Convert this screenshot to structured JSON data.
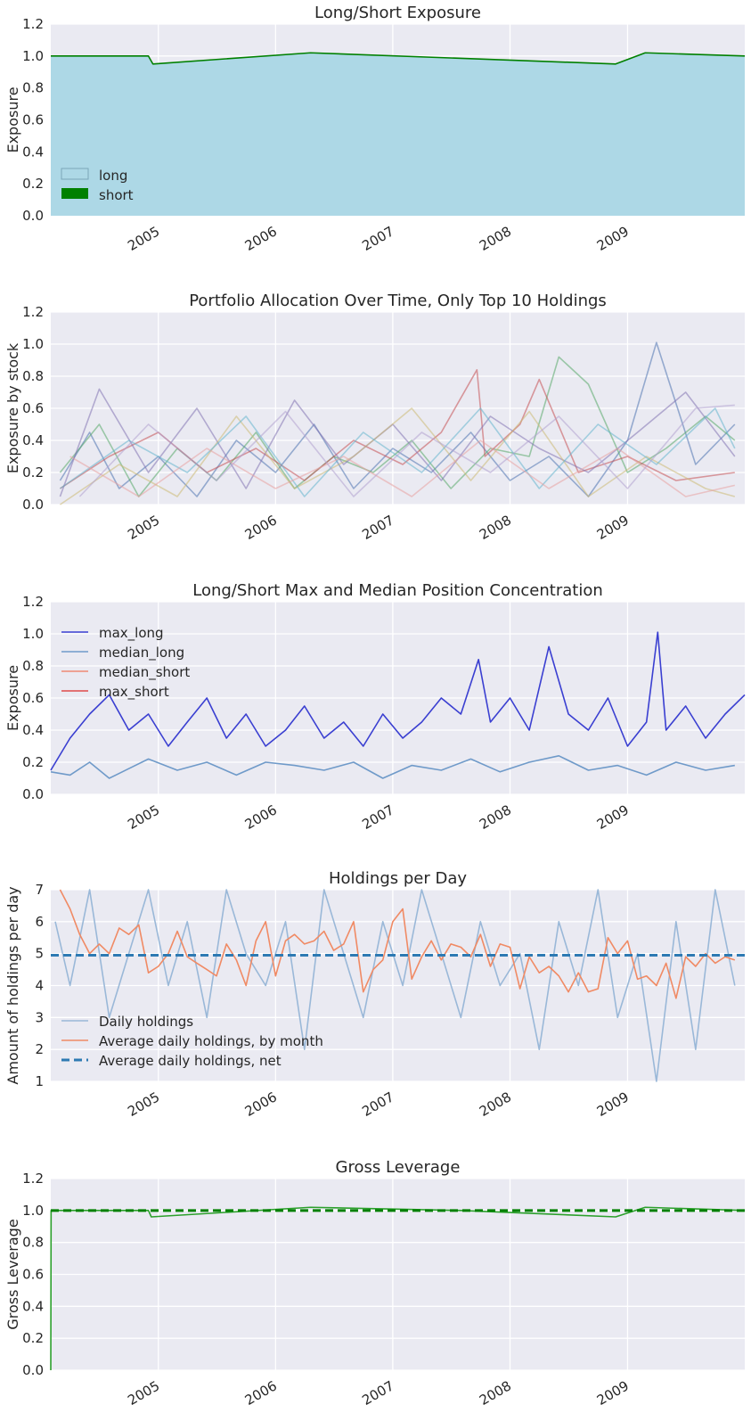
{
  "chart_data": [
    {
      "type": "area",
      "title": "Long/Short Exposure",
      "ylabel": "Exposure",
      "xlabel": "",
      "xlim": [
        "2004-02-01",
        "2010-01-01"
      ],
      "ylim": [
        0,
        1.2
      ],
      "yticks": [
        "0.0",
        "0.2",
        "0.4",
        "0.6",
        "0.8",
        "1.0",
        "1.2"
      ],
      "xticks": [
        "2005",
        "2006",
        "2007",
        "2008",
        "2009"
      ],
      "grid": true,
      "legend_position": "lower-left",
      "series": [
        {
          "name": "long",
          "color": "#add8e6",
          "fill": true,
          "x": [
            "2004-02-01",
            "2004-12-01",
            "2004-12-15",
            "2006-04-20",
            "2008-11-25",
            "2009-02-25",
            "2010-01-01"
          ],
          "y": [
            1.0,
            1.0,
            0.95,
            1.02,
            0.95,
            1.02,
            1.0
          ]
        },
        {
          "name": "short",
          "color": "#008000",
          "fill": false,
          "x": [
            "2004-02-01",
            "2004-12-01",
            "2004-12-15",
            "2006-04-20",
            "2008-11-25",
            "2009-02-25",
            "2010-01-01"
          ],
          "y": [
            1.0,
            1.0,
            0.95,
            1.02,
            0.95,
            1.02,
            1.0
          ]
        }
      ]
    },
    {
      "type": "line",
      "title": "Portfolio Allocation Over Time, Only Top 10 Holdings",
      "ylabel": "Exposure by stock",
      "xlabel": "",
      "xlim": [
        "2004-02-01",
        "2010-01-01"
      ],
      "ylim": [
        0,
        1.2
      ],
      "yticks": [
        "0.0",
        "0.2",
        "0.4",
        "0.6",
        "0.8",
        "1.0",
        "1.2"
      ],
      "xticks": [
        "2005",
        "2006",
        "2007",
        "2008",
        "2009"
      ],
      "grid": true,
      "series": [
        {
          "color": "#4c72b0",
          "x": [
            "2004-03-01",
            "2004-06-01",
            "2004-09-01",
            "2005-01-01",
            "2005-05-01",
            "2005-09-01",
            "2006-01-01",
            "2006-05-01",
            "2006-09-01",
            "2007-01-01",
            "2007-05-01",
            "2007-09-01",
            "2008-01-01",
            "2008-05-01",
            "2008-09-01",
            "2009-01-01",
            "2009-04-01",
            "2009-08-01",
            "2009-12-01"
          ],
          "y": [
            0.15,
            0.45,
            0.1,
            0.3,
            0.05,
            0.4,
            0.2,
            0.5,
            0.1,
            0.35,
            0.2,
            0.45,
            0.15,
            0.3,
            0.05,
            0.4,
            1.01,
            0.25,
            0.5
          ]
        },
        {
          "color": "#55a868",
          "x": [
            "2004-03-01",
            "2004-07-01",
            "2004-11-01",
            "2005-03-01",
            "2005-07-01",
            "2005-11-01",
            "2006-03-01",
            "2006-07-01",
            "2006-11-01",
            "2007-03-01",
            "2007-07-01",
            "2007-11-01",
            "2008-03-01",
            "2008-06-01",
            "2008-09-01",
            "2009-01-01",
            "2009-05-01",
            "2009-09-01",
            "2009-12-01"
          ],
          "y": [
            0.2,
            0.5,
            0.05,
            0.35,
            0.15,
            0.45,
            0.1,
            0.3,
            0.2,
            0.4,
            0.1,
            0.35,
            0.3,
            0.92,
            0.75,
            0.2,
            0.35,
            0.55,
            0.4
          ]
        },
        {
          "color": "#c44e52",
          "x": [
            "2004-03-01",
            "2004-08-01",
            "2005-01-01",
            "2005-06-01",
            "2005-11-01",
            "2006-04-01",
            "2006-09-01",
            "2007-02-01",
            "2007-06-01",
            "2007-09-20",
            "2007-10-15",
            "2008-02-01",
            "2008-04-01",
            "2008-08-01",
            "2009-01-01",
            "2009-06-01",
            "2009-12-01"
          ],
          "y": [
            0.1,
            0.3,
            0.45,
            0.2,
            0.35,
            0.15,
            0.4,
            0.25,
            0.45,
            0.84,
            0.3,
            0.5,
            0.78,
            0.2,
            0.3,
            0.15,
            0.2
          ]
        },
        {
          "color": "#8172b2",
          "x": [
            "2004-03-01",
            "2004-07-01",
            "2004-12-01",
            "2005-05-01",
            "2005-10-01",
            "2006-03-01",
            "2006-08-01",
            "2007-01-01",
            "2007-06-01",
            "2007-11-01",
            "2008-04-01",
            "2008-09-01",
            "2009-02-01",
            "2009-07-01",
            "2009-12-01"
          ],
          "y": [
            0.05,
            0.72,
            0.2,
            0.6,
            0.1,
            0.65,
            0.25,
            0.5,
            0.15,
            0.55,
            0.35,
            0.2,
            0.45,
            0.7,
            0.3
          ]
        },
        {
          "color": "#ccb974",
          "x": [
            "2004-03-01",
            "2004-09-01",
            "2005-03-01",
            "2005-09-01",
            "2006-03-01",
            "2006-09-01",
            "2007-03-01",
            "2007-09-01",
            "2008-03-01",
            "2008-09-01",
            "2009-03-01",
            "2009-09-01",
            "2009-12-01"
          ],
          "y": [
            0.0,
            0.25,
            0.05,
            0.55,
            0.1,
            0.3,
            0.6,
            0.15,
            0.58,
            0.05,
            0.3,
            0.1,
            0.05
          ]
        },
        {
          "color": "#64b5cd",
          "x": [
            "2004-03-01",
            "2004-10-01",
            "2005-04-01",
            "2005-10-01",
            "2006-04-01",
            "2006-10-01",
            "2007-04-01",
            "2007-10-01",
            "2008-04-01",
            "2008-10-01",
            "2009-04-01",
            "2009-10-01",
            "2009-12-01"
          ],
          "y": [
            0.1,
            0.4,
            0.2,
            0.55,
            0.05,
            0.45,
            0.2,
            0.6,
            0.1,
            0.5,
            0.25,
            0.6,
            0.35
          ]
        },
        {
          "color": "#e8a0a0",
          "x": [
            "2004-04-01",
            "2004-11-01",
            "2005-06-01",
            "2006-01-01",
            "2006-08-01",
            "2007-03-01",
            "2007-10-01",
            "2008-05-01",
            "2008-12-01",
            "2009-07-01",
            "2009-12-01"
          ],
          "y": [
            0.3,
            0.05,
            0.35,
            0.1,
            0.3,
            0.05,
            0.4,
            0.1,
            0.35,
            0.05,
            0.12
          ]
        },
        {
          "color": "#b0a0d0",
          "x": [
            "2004-05-01",
            "2004-12-01",
            "2005-07-01",
            "2006-02-01",
            "2006-09-01",
            "2007-04-01",
            "2007-11-01",
            "2008-06-01",
            "2009-01-01",
            "2009-08-01",
            "2009-12-01"
          ],
          "y": [
            0.05,
            0.5,
            0.15,
            0.58,
            0.05,
            0.45,
            0.2,
            0.55,
            0.1,
            0.6,
            0.62
          ]
        }
      ]
    },
    {
      "type": "line",
      "title": "Long/Short Max and Median Position Concentration",
      "ylabel": "Exposure",
      "xlabel": "",
      "xlim": [
        "2004-02-01",
        "2010-01-01"
      ],
      "ylim": [
        0,
        1.2
      ],
      "yticks": [
        "0.0",
        "0.2",
        "0.4",
        "0.6",
        "0.8",
        "1.0",
        "1.2"
      ],
      "xticks": [
        "2005",
        "2006",
        "2007",
        "2008",
        "2009"
      ],
      "grid": true,
      "legend_position": "center-left",
      "series": [
        {
          "name": "max_long",
          "color": "#3a3fd1",
          "x": [
            "2004-02-01",
            "2004-04-01",
            "2004-06-01",
            "2004-08-01",
            "2004-10-01",
            "2004-12-01",
            "2005-02-01",
            "2005-04-01",
            "2005-06-01",
            "2005-08-01",
            "2005-10-01",
            "2005-12-01",
            "2006-02-01",
            "2006-04-01",
            "2006-06-01",
            "2006-08-01",
            "2006-10-01",
            "2006-12-01",
            "2007-02-01",
            "2007-04-01",
            "2007-06-01",
            "2007-08-01",
            "2007-09-25",
            "2007-11-01",
            "2008-01-01",
            "2008-03-01",
            "2008-05-01",
            "2008-07-01",
            "2008-09-01",
            "2008-11-01",
            "2009-01-01",
            "2009-03-01",
            "2009-04-05",
            "2009-05-01",
            "2009-07-01",
            "2009-09-01",
            "2009-11-01",
            "2010-01-01"
          ],
          "y": [
            0.15,
            0.35,
            0.5,
            0.62,
            0.4,
            0.5,
            0.3,
            0.45,
            0.6,
            0.35,
            0.5,
            0.3,
            0.4,
            0.55,
            0.35,
            0.45,
            0.3,
            0.5,
            0.35,
            0.45,
            0.6,
            0.5,
            0.84,
            0.45,
            0.6,
            0.4,
            0.92,
            0.5,
            0.4,
            0.6,
            0.3,
            0.45,
            1.01,
            0.4,
            0.55,
            0.35,
            0.5,
            0.62
          ]
        },
        {
          "name": "median_long",
          "color": "#6f9ac9",
          "x": [
            "2004-02-01",
            "2004-04-01",
            "2004-06-01",
            "2004-08-01",
            "2004-10-01",
            "2004-12-01",
            "2005-03-01",
            "2005-06-01",
            "2005-09-01",
            "2005-12-01",
            "2006-03-01",
            "2006-06-01",
            "2006-09-01",
            "2006-12-01",
            "2007-03-01",
            "2007-06-01",
            "2007-09-01",
            "2007-12-01",
            "2008-03-01",
            "2008-06-01",
            "2008-09-01",
            "2008-12-01",
            "2009-03-01",
            "2009-06-01",
            "2009-09-01",
            "2009-12-01"
          ],
          "y": [
            0.14,
            0.12,
            0.2,
            0.1,
            0.16,
            0.22,
            0.15,
            0.2,
            0.12,
            0.2,
            0.18,
            0.15,
            0.2,
            0.1,
            0.18,
            0.15,
            0.22,
            0.14,
            0.2,
            0.24,
            0.15,
            0.18,
            0.12,
            0.2,
            0.15,
            0.18
          ]
        },
        {
          "name": "median_short",
          "color": "#f08a74",
          "x": [],
          "y": []
        },
        {
          "name": "max_short",
          "color": "#e04a4a",
          "x": [],
          "y": []
        }
      ]
    },
    {
      "type": "line",
      "title": "Holdings per Day",
      "ylabel": "Amount of holdings per day",
      "xlabel": "",
      "xlim": [
        "2004-02-01",
        "2010-01-01"
      ],
      "ylim": [
        1,
        7
      ],
      "yticks": [
        "1",
        "2",
        "3",
        "4",
        "5",
        "6",
        "7"
      ],
      "xticks": [
        "2005",
        "2006",
        "2007",
        "2008",
        "2009"
      ],
      "grid": true,
      "legend_position": "lower-left",
      "series": [
        {
          "name": "Daily holdings",
          "color": "#9ab8d8",
          "x": [
            "2004-02-15",
            "2004-04-01",
            "2004-06-01",
            "2004-08-01",
            "2004-10-01",
            "2004-12-01",
            "2005-02-01",
            "2005-04-01",
            "2005-06-01",
            "2005-08-01",
            "2005-10-01",
            "2005-12-01",
            "2006-02-01",
            "2006-04-01",
            "2006-06-01",
            "2006-08-01",
            "2006-10-01",
            "2006-12-01",
            "2007-02-01",
            "2007-04-01",
            "2007-06-01",
            "2007-08-01",
            "2007-10-01",
            "2007-12-01",
            "2008-02-01",
            "2008-04-01",
            "2008-06-01",
            "2008-08-01",
            "2008-10-01",
            "2008-12-01",
            "2009-02-01",
            "2009-04-01",
            "2009-06-01",
            "2009-08-01",
            "2009-10-01",
            "2009-12-01"
          ],
          "y": [
            6,
            4,
            7,
            3,
            5,
            7,
            4,
            6,
            3,
            7,
            5,
            4,
            6,
            2,
            7,
            5,
            3,
            6,
            4,
            7,
            5,
            3,
            6,
            4,
            5,
            2,
            6,
            4,
            7,
            3,
            5,
            1,
            6,
            2,
            7,
            4
          ]
        },
        {
          "name": "Average daily holdings, by month",
          "color": "#f08a64",
          "x": [
            "2004-03-01",
            "2004-04-01",
            "2004-05-01",
            "2004-06-01",
            "2004-07-01",
            "2004-08-01",
            "2004-09-01",
            "2004-10-01",
            "2004-11-01",
            "2004-12-01",
            "2005-01-01",
            "2005-02-01",
            "2005-03-01",
            "2005-04-01",
            "2005-05-01",
            "2005-06-01",
            "2005-07-01",
            "2005-08-01",
            "2005-09-01",
            "2005-10-01",
            "2005-11-01",
            "2005-12-01",
            "2006-01-01",
            "2006-02-01",
            "2006-03-01",
            "2006-04-01",
            "2006-05-01",
            "2006-06-01",
            "2006-07-01",
            "2006-08-01",
            "2006-09-01",
            "2006-10-01",
            "2006-11-01",
            "2006-12-01",
            "2007-01-01",
            "2007-02-01",
            "2007-03-01",
            "2007-04-01",
            "2007-05-01",
            "2007-06-01",
            "2007-07-01",
            "2007-08-01",
            "2007-09-01",
            "2007-10-01",
            "2007-11-01",
            "2007-12-01",
            "2008-01-01",
            "2008-02-01",
            "2008-03-01",
            "2008-04-01",
            "2008-05-01",
            "2008-06-01",
            "2008-07-01",
            "2008-08-01",
            "2008-09-01",
            "2008-10-01",
            "2008-11-01",
            "2008-12-01",
            "2009-01-01",
            "2009-02-01",
            "2009-03-01",
            "2009-04-01",
            "2009-05-01",
            "2009-06-01",
            "2009-07-01",
            "2009-08-01",
            "2009-09-01",
            "2009-10-01",
            "2009-11-01",
            "2009-12-01"
          ],
          "y": [
            7.0,
            6.4,
            5.6,
            5.0,
            5.3,
            5.0,
            5.8,
            5.6,
            5.9,
            4.4,
            4.6,
            5.0,
            5.7,
            4.9,
            4.7,
            4.5,
            4.3,
            5.3,
            4.8,
            4.0,
            5.4,
            6.0,
            4.3,
            5.4,
            5.6,
            5.3,
            5.4,
            5.7,
            5.1,
            5.3,
            6.0,
            3.8,
            4.5,
            4.8,
            6.0,
            6.4,
            4.2,
            4.9,
            5.4,
            4.8,
            5.3,
            5.2,
            4.9,
            5.6,
            4.6,
            5.3,
            5.2,
            3.9,
            4.9,
            4.4,
            4.6,
            4.3,
            3.8,
            4.4,
            3.8,
            3.9,
            5.5,
            5.0,
            5.4,
            4.2,
            4.3,
            4.0,
            4.7,
            3.6,
            4.9,
            4.6,
            5.0,
            4.7,
            4.9,
            4.8
          ]
        },
        {
          "name": "Average daily holdings, net",
          "color": "#2e7ab3",
          "dashed": true,
          "x": [
            "2004-02-01",
            "2010-01-01"
          ],
          "y": [
            4.95,
            4.95
          ]
        }
      ]
    },
    {
      "type": "line",
      "title": "Gross Leverage",
      "ylabel": "Gross Leverage",
      "xlabel": "",
      "xlim": [
        "2004-02-01",
        "2010-01-01"
      ],
      "ylim": [
        0,
        1.2
      ],
      "yticks": [
        "0.0",
        "0.2",
        "0.4",
        "0.6",
        "0.8",
        "1.0",
        "1.2"
      ],
      "xticks": [
        "2005",
        "2006",
        "2007",
        "2008",
        "2009"
      ],
      "grid": true,
      "series": [
        {
          "color": "#2ca02c",
          "x": [
            "2004-02-01",
            "2004-02-02",
            "2004-12-01",
            "2004-12-10",
            "2006-04-20",
            "2007-08-01",
            "2008-11-25",
            "2009-02-25",
            "2010-01-01"
          ],
          "y": [
            0.0,
            1.0,
            1.0,
            0.96,
            1.02,
            1.0,
            0.96,
            1.02,
            1.0
          ]
        },
        {
          "color": "#008000",
          "dashed": true,
          "x": [
            "2004-02-01",
            "2010-01-01"
          ],
          "y": [
            1.0,
            1.0
          ]
        }
      ]
    }
  ]
}
